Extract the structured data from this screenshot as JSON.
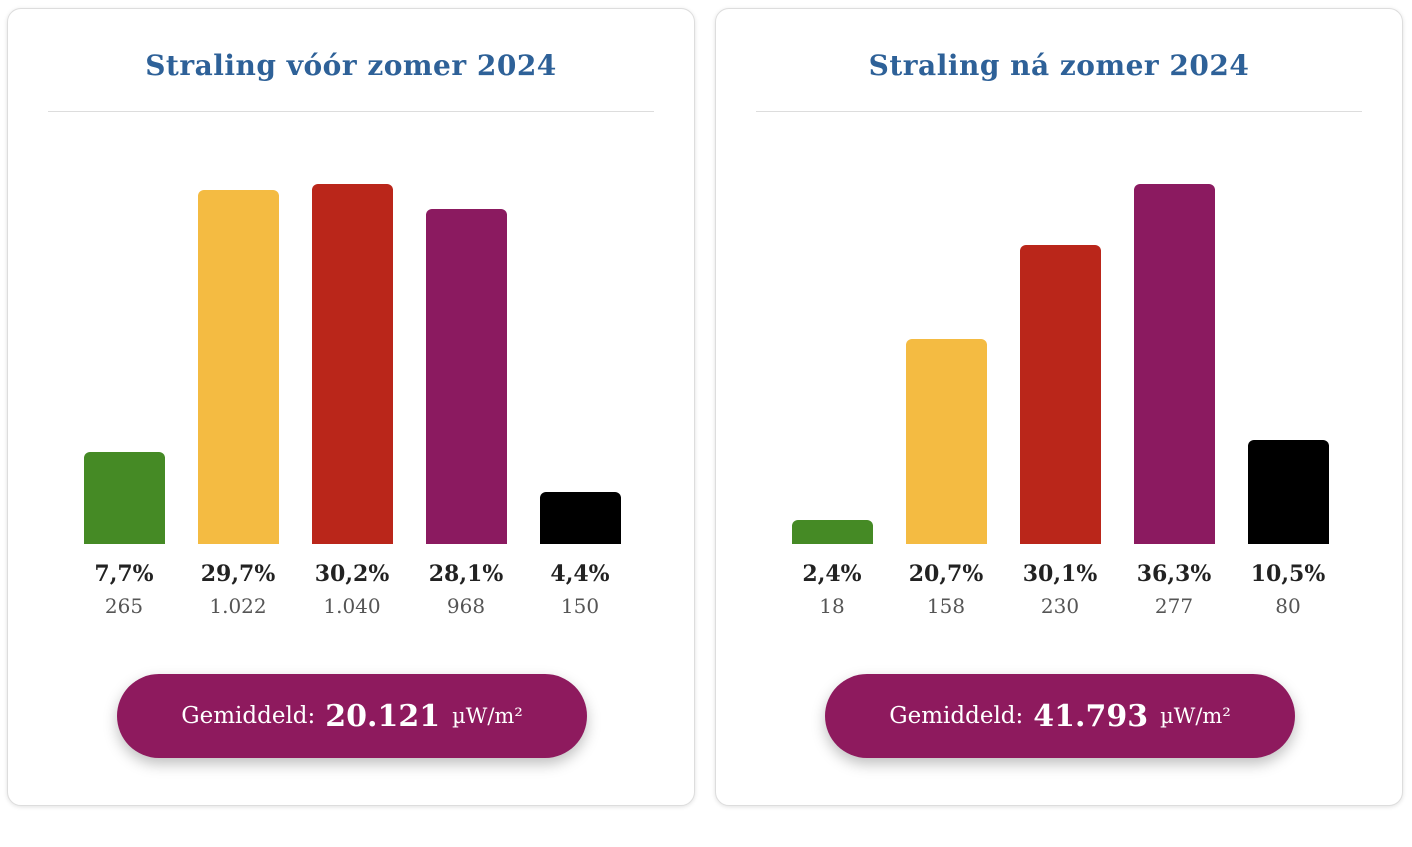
{
  "chart_data": [
    {
      "type": "bar",
      "title": "Straling vóór zomer 2024",
      "colors": [
        "#458a25",
        "#f4bb42",
        "#ba261a",
        "#8b1a60",
        "#000000"
      ],
      "percent_labels": [
        "7,7%",
        "29,7%",
        "30,2%",
        "28,1%",
        "4,4%"
      ],
      "values": [
        7.7,
        29.7,
        30.2,
        28.1,
        4.4
      ],
      "count_labels": [
        "265",
        "1.022",
        "1.040",
        "968",
        "150"
      ],
      "average_label": "Gemiddeld:",
      "average_value": "20.121",
      "average_unit": "µW/m²"
    },
    {
      "type": "bar",
      "title": "Straling ná zomer 2024",
      "colors": [
        "#458a25",
        "#f4bb42",
        "#ba261a",
        "#8b1a60",
        "#000000"
      ],
      "percent_labels": [
        "2,4%",
        "20,7%",
        "30,1%",
        "36,3%",
        "10,5%"
      ],
      "values": [
        2.4,
        20.7,
        30.1,
        36.3,
        10.5
      ],
      "count_labels": [
        "18",
        "158",
        "230",
        "277",
        "80"
      ],
      "average_label": "Gemiddeld:",
      "average_value": "41.793",
      "average_unit": "µW/m²"
    }
  ]
}
